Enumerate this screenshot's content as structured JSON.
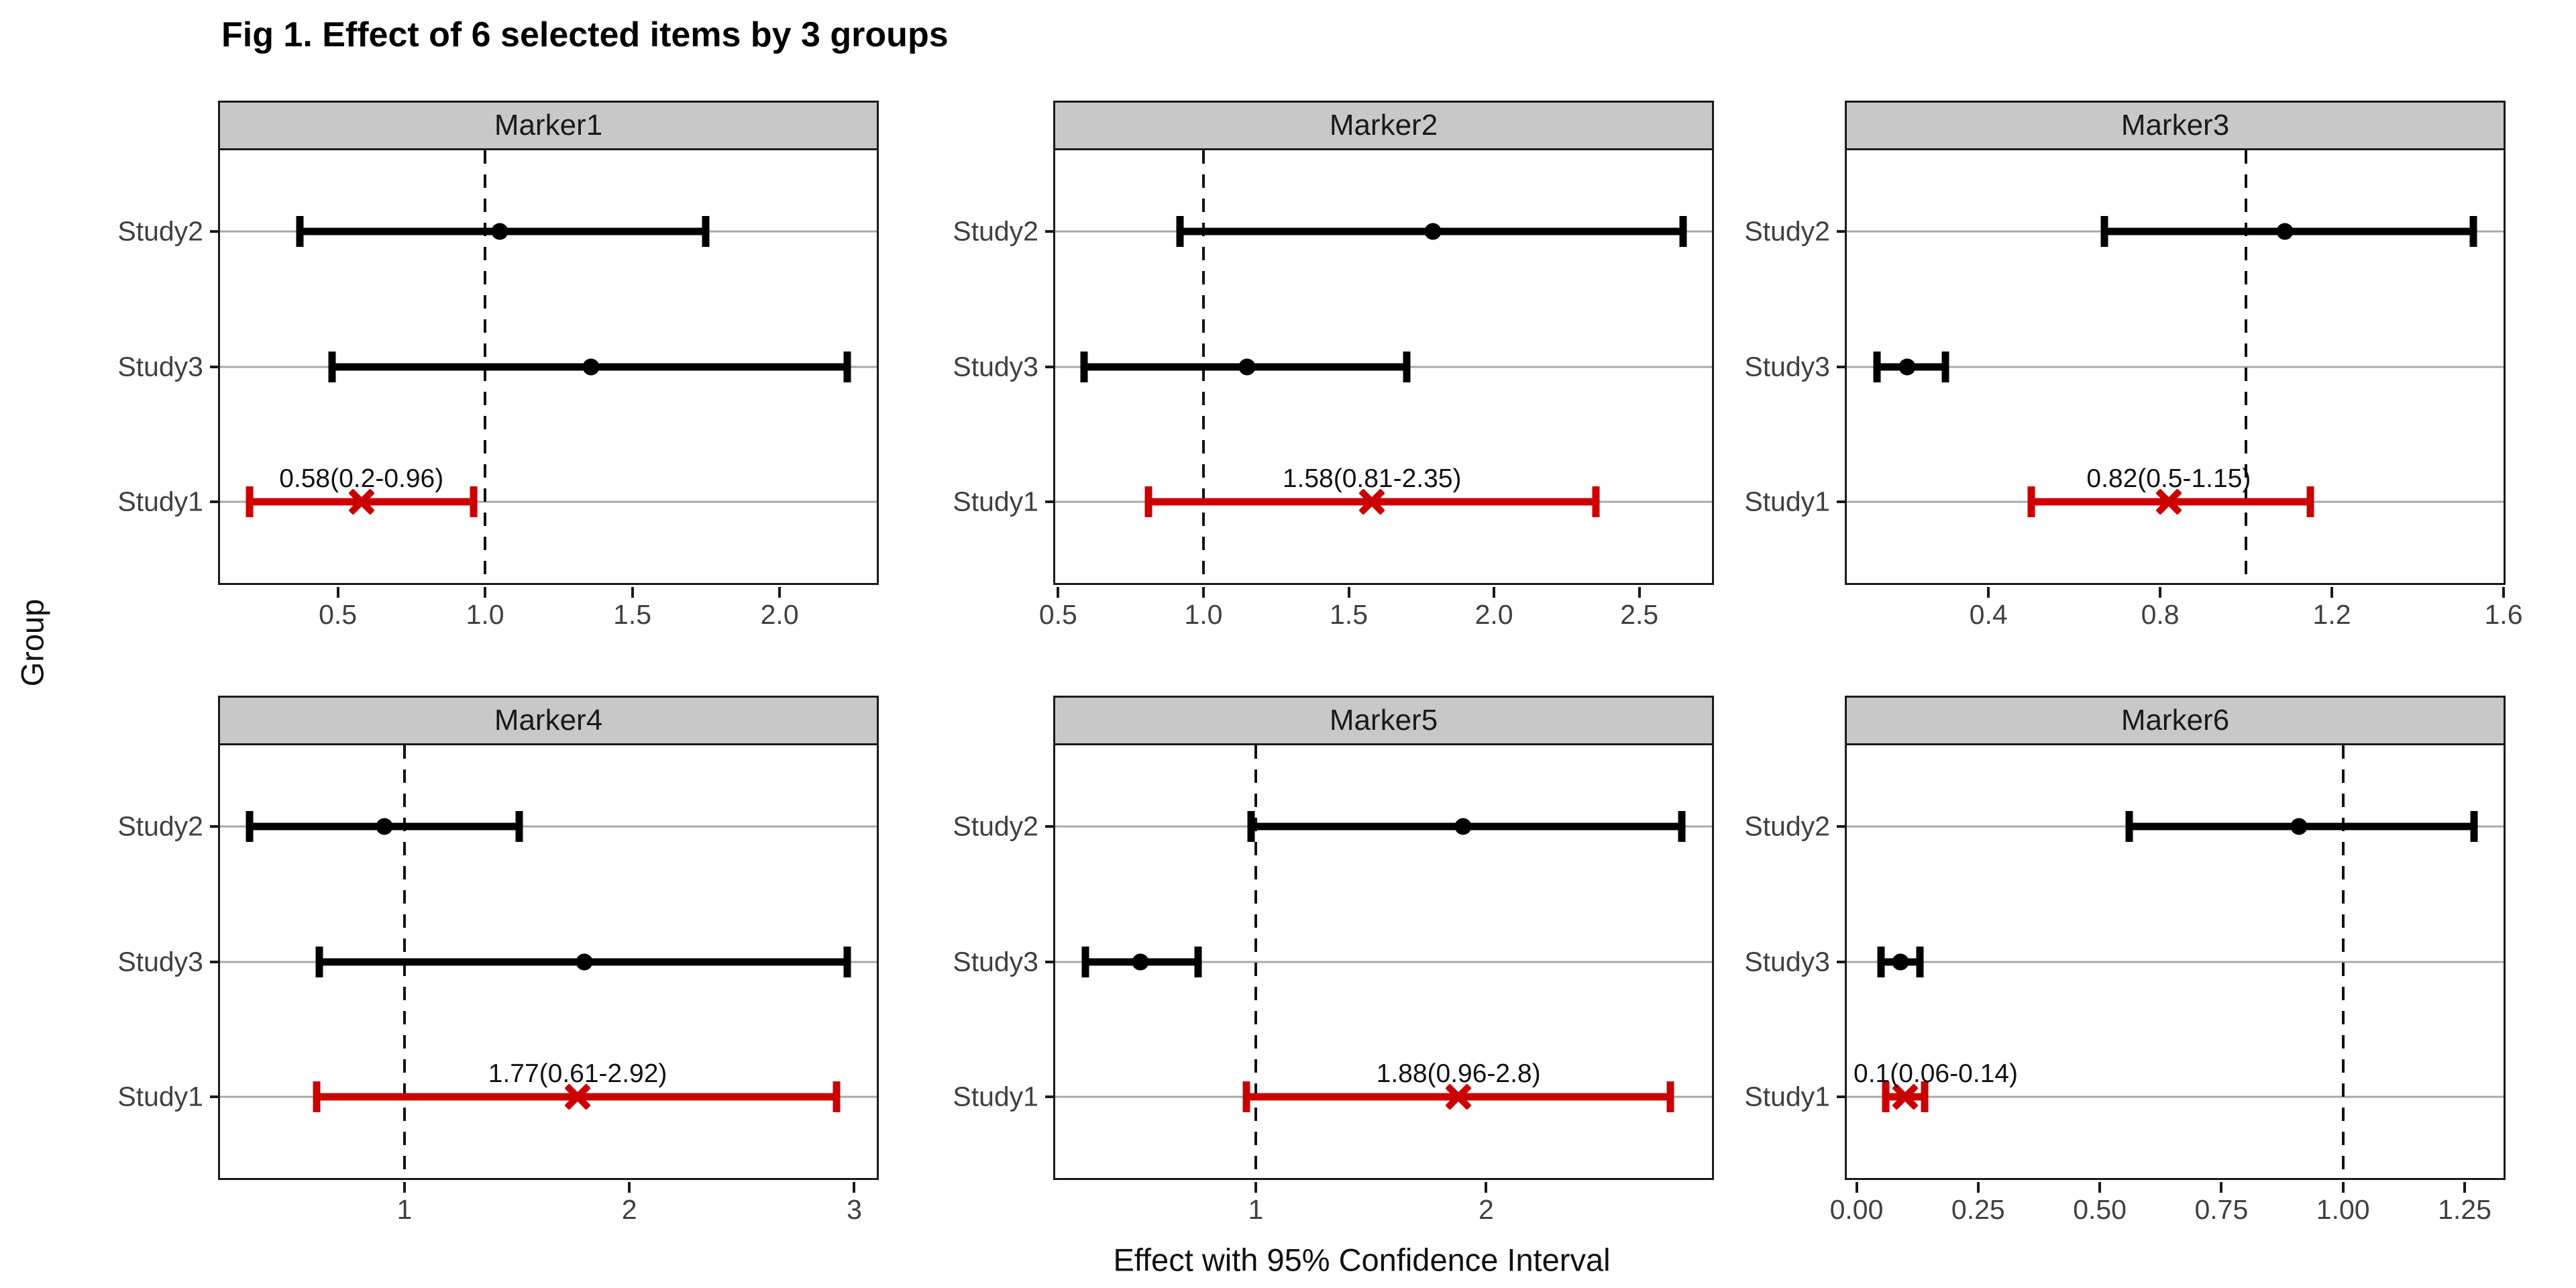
{
  "figure": {
    "title": "Fig 1. Effect of 6 selected items by 3 groups",
    "x_axis_title": "Effect with 95% Confidence Interval",
    "y_axis_title": "Group"
  },
  "colors": {
    "highlight_red": "#CD0000",
    "series_black": "#000000",
    "strip_background": "#C8C8C8",
    "gridline_gray": "#A9A9A9",
    "axis_text_gray": "#404040",
    "reference_line": "#111111"
  },
  "group_labels_top_to_bottom": [
    "Study2",
    "Study3",
    "Study1"
  ],
  "chart_data": {
    "type": "scatter",
    "subtype": "forest-plot-ci",
    "grid": "horizontal-major-only",
    "legend_position": "none",
    "reference_line_x": 1.0,
    "panels": [
      {
        "title": "Marker1",
        "xlim": [
          0.1,
          2.33
        ],
        "x_ticks": [
          0.5,
          1.0,
          1.5,
          2.0
        ],
        "x_tick_labels": [
          "0.5",
          "1.0",
          "1.5",
          "2.0"
        ],
        "rows": [
          {
            "group": "Study2",
            "estimate": 1.05,
            "ci_low": 0.37,
            "ci_high": 1.75,
            "style": "black-dot"
          },
          {
            "group": "Study3",
            "estimate": 1.36,
            "ci_low": 0.48,
            "ci_high": 2.23,
            "style": "black-dot"
          },
          {
            "group": "Study1",
            "estimate": 0.58,
            "ci_low": 0.2,
            "ci_high": 0.96,
            "style": "red-x",
            "annotation": "0.58(0.2-0.96)"
          }
        ]
      },
      {
        "title": "Marker2",
        "xlim": [
          0.49,
          2.75
        ],
        "x_ticks": [
          0.5,
          1.0,
          1.5,
          2.0,
          2.5
        ],
        "x_tick_labels": [
          "0.5",
          "1.0",
          "1.5",
          "2.0",
          "2.5"
        ],
        "rows": [
          {
            "group": "Study2",
            "estimate": 1.79,
            "ci_low": 0.92,
            "ci_high": 2.65,
            "style": "black-dot"
          },
          {
            "group": "Study3",
            "estimate": 1.15,
            "ci_low": 0.59,
            "ci_high": 1.7,
            "style": "black-dot"
          },
          {
            "group": "Study1",
            "estimate": 1.58,
            "ci_low": 0.81,
            "ci_high": 2.35,
            "style": "red-x",
            "annotation": "1.58(0.81-2.35)"
          }
        ]
      },
      {
        "title": "Marker3",
        "xlim": [
          0.07,
          1.6
        ],
        "x_ticks": [
          0.4,
          0.8,
          1.2,
          1.6
        ],
        "x_tick_labels": [
          "0.4",
          "0.8",
          "1.2",
          "1.6"
        ],
        "rows": [
          {
            "group": "Study2",
            "estimate": 1.09,
            "ci_low": 0.67,
            "ci_high": 1.53,
            "style": "black-dot"
          },
          {
            "group": "Study3",
            "estimate": 0.21,
            "ci_low": 0.14,
            "ci_high": 0.3,
            "style": "black-dot"
          },
          {
            "group": "Study1",
            "estimate": 0.82,
            "ci_low": 0.5,
            "ci_high": 1.15,
            "style": "red-x",
            "annotation": "0.82(0.5-1.15)"
          }
        ]
      },
      {
        "title": "Marker4",
        "xlim": [
          0.18,
          3.1
        ],
        "x_ticks": [
          1,
          2,
          3
        ],
        "x_tick_labels": [
          "1",
          "2",
          "3"
        ],
        "rows": [
          {
            "group": "Study2",
            "estimate": 0.91,
            "ci_low": 0.31,
            "ci_high": 1.51,
            "style": "black-dot"
          },
          {
            "group": "Study3",
            "estimate": 1.8,
            "ci_low": 0.62,
            "ci_high": 2.97,
            "style": "black-dot"
          },
          {
            "group": "Study1",
            "estimate": 1.77,
            "ci_low": 0.61,
            "ci_high": 2.92,
            "style": "red-x",
            "annotation": "1.77(0.61-2.92)"
          }
        ]
      },
      {
        "title": "Marker5",
        "xlim": [
          0.13,
          2.98
        ],
        "x_ticks": [
          1,
          2
        ],
        "x_tick_labels": [
          "1",
          "2"
        ],
        "rows": [
          {
            "group": "Study2",
            "estimate": 1.9,
            "ci_low": 0.98,
            "ci_high": 2.85,
            "style": "black-dot"
          },
          {
            "group": "Study3",
            "estimate": 0.5,
            "ci_low": 0.26,
            "ci_high": 0.75,
            "style": "black-dot"
          },
          {
            "group": "Study1",
            "estimate": 1.88,
            "ci_low": 0.96,
            "ci_high": 2.8,
            "style": "red-x",
            "annotation": "1.88(0.96-2.8)"
          }
        ]
      },
      {
        "title": "Marker6",
        "xlim": [
          -0.02,
          1.33
        ],
        "x_ticks": [
          0.0,
          0.25,
          0.5,
          0.75,
          1.0,
          1.25
        ],
        "x_tick_labels": [
          "0.00",
          "0.25",
          "0.50",
          "0.75",
          "1.00",
          "1.25"
        ],
        "rows": [
          {
            "group": "Study2",
            "estimate": 0.91,
            "ci_low": 0.56,
            "ci_high": 1.27,
            "style": "black-dot"
          },
          {
            "group": "Study3",
            "estimate": 0.09,
            "ci_low": 0.05,
            "ci_high": 0.13,
            "style": "black-dot"
          },
          {
            "group": "Study1",
            "estimate": 0.1,
            "ci_low": 0.06,
            "ci_high": 0.14,
            "style": "red-x",
            "annotation": "0.1(0.06-0.14)"
          }
        ]
      }
    ]
  }
}
